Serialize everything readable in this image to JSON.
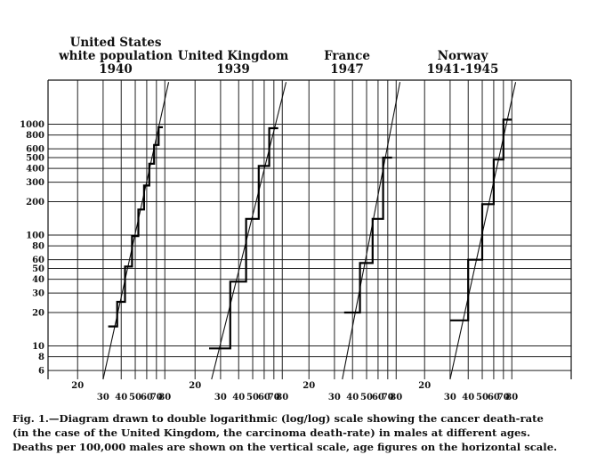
{
  "chart_data": {
    "type": "line",
    "scale": {
      "x": "log",
      "y": "log"
    },
    "grid": true,
    "ylim": [
      5,
      2500
    ],
    "y_ticks": [
      1000,
      800,
      600,
      500,
      400,
      300,
      200,
      100,
      80,
      60,
      50,
      40,
      30,
      20,
      10,
      8,
      6
    ],
    "y_tick_labels": [
      "1000",
      "800",
      "600",
      "500",
      "400",
      "300",
      "200",
      "100",
      "80",
      "60",
      "50",
      "40",
      "30",
      "20",
      "10",
      "8",
      "6"
    ],
    "x_ticks": [
      20,
      30,
      40,
      50,
      60,
      70,
      80
    ],
    "x_tick_labels": [
      "20",
      "30",
      "40",
      "50",
      "60",
      "70",
      "80"
    ],
    "panels": [
      {
        "title_lines": [
          "United States",
          "white population",
          "1940"
        ],
        "xlim": [
          14,
          88
        ],
        "fit_line": {
          "x": [
            30,
            85
          ],
          "y": [
            5,
            2400
          ]
        },
        "steps": [
          {
            "x0": 32.5,
            "x1": 37.5,
            "y": 15
          },
          {
            "x0": 37.5,
            "x1": 42.5,
            "y": 25
          },
          {
            "x0": 42.5,
            "x1": 47.5,
            "y": 52
          },
          {
            "x0": 47.5,
            "x1": 52.5,
            "y": 98
          },
          {
            "x0": 52.5,
            "x1": 57.5,
            "y": 170
          },
          {
            "x0": 57.5,
            "x1": 62.5,
            "y": 280
          },
          {
            "x0": 62.5,
            "x1": 67.5,
            "y": 440
          },
          {
            "x0": 67.5,
            "x1": 72.5,
            "y": 650
          },
          {
            "x0": 72.5,
            "x1": 77.5,
            "y": 940
          }
        ]
      },
      {
        "title_lines": [
          "United Kingdom",
          "1939"
        ],
        "xlim": [
          14,
          88
        ],
        "fit_line": {
          "x": [
            26,
            85
          ],
          "y": [
            5,
            2400
          ]
        },
        "steps": [
          {
            "x0": 25,
            "x1": 35,
            "y": 9.5
          },
          {
            "x0": 35,
            "x1": 45,
            "y": 38
          },
          {
            "x0": 45,
            "x1": 55,
            "y": 140
          },
          {
            "x0": 55,
            "x1": 65,
            "y": 420
          },
          {
            "x0": 65,
            "x1": 75,
            "y": 920
          }
        ]
      },
      {
        "title_lines": [
          "France",
          "1947"
        ],
        "xlim": [
          14,
          88
        ],
        "fit_line": {
          "x": [
            34,
            85
          ],
          "y": [
            5,
            2400
          ]
        },
        "steps": [
          {
            "x0": 35,
            "x1": 45,
            "y": 20
          },
          {
            "x0": 45,
            "x1": 55,
            "y": 56
          },
          {
            "x0": 55,
            "x1": 65,
            "y": 140
          },
          {
            "x0": 65,
            "x1": 75,
            "y": 500
          }
        ]
      },
      {
        "title_lines": [
          "Norway",
          "1941-1945"
        ],
        "xlim": [
          14,
          88
        ],
        "fit_line": {
          "x": [
            30,
            85
          ],
          "y": [
            5,
            2400
          ]
        },
        "steps": [
          {
            "x0": 30,
            "x1": 40,
            "y": 17
          },
          {
            "x0": 40,
            "x1": 50,
            "y": 60
          },
          {
            "x0": 50,
            "x1": 60,
            "y": 190
          },
          {
            "x0": 60,
            "x1": 70,
            "y": 480
          },
          {
            "x0": 70,
            "x1": 80,
            "y": 1100
          }
        ]
      }
    ],
    "caption": {
      "lines": [
        "Fig. 1.—Diagram drawn to double logarithmic (log/log) scale showing the cancer death-rate",
        "(in the case of the United Kingdom, the carcinoma death-rate) in males at different ages.",
        "Deaths per 100,000 males are shown on the vertical scale, age figures on the horizontal scale."
      ]
    }
  }
}
